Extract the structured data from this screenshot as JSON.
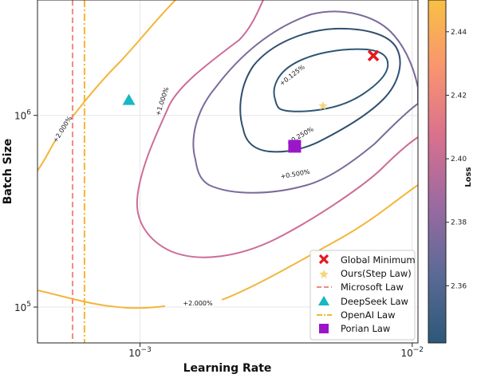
{
  "chart_data": {
    "type": "contour",
    "xlabel": "Learning Rate",
    "ylabel": "Batch Size",
    "x_scale": "log",
    "y_scale": "log",
    "xlim": [
      0.00042,
      0.0105
    ],
    "ylim": [
      65000,
      4000000
    ],
    "x_ticks": [
      {
        "value": 0.001,
        "base": "10",
        "exp": "−3"
      },
      {
        "value": 0.01,
        "base": "10",
        "exp": "−2"
      }
    ],
    "y_ticks": [
      {
        "value": 100000,
        "base": "10",
        "exp": "5"
      },
      {
        "value": 1000000,
        "base": "10",
        "exp": "6"
      }
    ],
    "grid": true,
    "colorbar": {
      "label": "Loss",
      "range": [
        2.342,
        2.45
      ],
      "ticks": [
        "2.36",
        "2.38",
        "2.40",
        "2.42",
        "2.44"
      ],
      "tick_values": [
        2.36,
        2.38,
        2.4,
        2.42,
        2.44
      ]
    },
    "contour_labels": [
      "+0.125%",
      "+0.250%",
      "+0.500%",
      "+1.000%",
      "+2.000%",
      "+2.000%"
    ],
    "contour_levels": [
      0.125,
      0.25,
      0.5,
      1.0,
      2.0
    ],
    "markers": [
      {
        "name": "Global Minimum",
        "x": 0.0072,
        "y": 2050000
      },
      {
        "name": "Ours(Step Law)",
        "x": 0.0047,
        "y": 1120000
      },
      {
        "name": "DeepSeek Law",
        "x": 0.00091,
        "y": 1200000
      },
      {
        "name": "Porian Law",
        "x": 0.0037,
        "y": 690000
      }
    ],
    "vlines": [
      {
        "name": "Microsoft Law",
        "x": 0.000565
      },
      {
        "name": "OpenAI Law",
        "x": 0.000625
      }
    ],
    "legend": {
      "position": "lower-right",
      "entries": [
        "Global Minimum",
        "Ours(Step Law)",
        "Microsoft Law",
        "DeepSeek Law",
        "OpenAI Law",
        "Porian Law"
      ]
    },
    "colors": {
      "global_minimum": "#e41a1c",
      "step_law": "#f7d57a",
      "microsoft": "#f28b82",
      "deepseek": "#17b8c4",
      "openai": "#f4b632",
      "porian": "#9b16c9",
      "level_0125": "#2d5674",
      "level_025": "#2f4f6f",
      "level_05": "#7b6a9a",
      "level_1": "#cc6c98",
      "level_2": "#f4b53a"
    }
  }
}
